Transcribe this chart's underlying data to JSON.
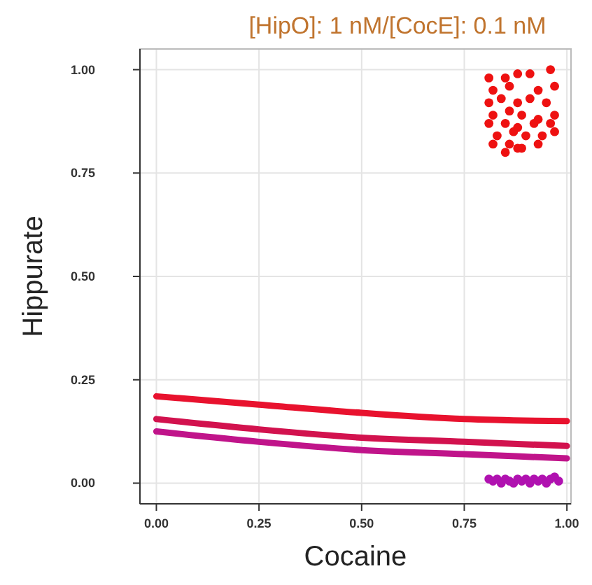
{
  "chart_data": {
    "type": "scatter",
    "title": "[HipO]: 1 nM/[CocE]: 0.1 nM",
    "xlabel": "Cocaine",
    "ylabel": "Hippurate",
    "xlim": [
      -0.04,
      1.01
    ],
    "ylim": [
      -0.05,
      1.05
    ],
    "xticks": [
      {
        "value": 0,
        "label": "0.00"
      },
      {
        "value": 0.25,
        "label": "0.25"
      },
      {
        "value": 0.5,
        "label": "0.50"
      },
      {
        "value": 0.75,
        "label": "0.75"
      },
      {
        "value": 1,
        "label": "1.00"
      }
    ],
    "yticks": [
      {
        "value": 0,
        "label": "0.00"
      },
      {
        "value": 0.25,
        "label": "0.25"
      },
      {
        "value": 0.5,
        "label": "0.50"
      },
      {
        "value": 0.75,
        "label": "0.75"
      },
      {
        "value": 1,
        "label": "1.00"
      }
    ],
    "grid": true,
    "marker": "circle",
    "series": [
      {
        "type": "line",
        "marker": "none",
        "color": "#e8122e",
        "x": [
          0,
          0.25,
          0.5,
          0.75,
          1
        ],
        "values": [
          0.21,
          0.19,
          0.17,
          0.155,
          0.15
        ]
      },
      {
        "type": "line",
        "marker": "none",
        "color": "#d2124e",
        "x": [
          0,
          0.25,
          0.5,
          0.75,
          1
        ],
        "values": [
          0.155,
          0.13,
          0.11,
          0.1,
          0.09
        ]
      },
      {
        "type": "line",
        "marker": "none",
        "color": "#c0148a",
        "x": [
          0,
          0.25,
          0.5,
          0.75,
          1
        ],
        "values": [
          0.125,
          0.1,
          0.08,
          0.07,
          0.06
        ]
      },
      {
        "color": "#ee1111",
        "x": [
          0.81,
          0.85,
          0.88,
          0.91,
          0.96,
          0.82,
          0.86,
          0.93,
          0.97,
          0.81,
          0.84,
          0.88,
          0.91,
          0.95,
          0.82,
          0.86,
          0.89,
          0.93,
          0.97,
          0.81,
          0.85,
          0.88,
          0.92,
          0.96,
          0.83,
          0.87,
          0.9,
          0.94,
          0.97,
          0.82,
          0.86,
          0.89,
          0.93,
          0.85,
          0.88
        ],
        "values": [
          0.98,
          0.98,
          0.99,
          0.99,
          1.0,
          0.95,
          0.96,
          0.95,
          0.96,
          0.92,
          0.93,
          0.92,
          0.93,
          0.92,
          0.89,
          0.9,
          0.89,
          0.88,
          0.89,
          0.87,
          0.87,
          0.86,
          0.87,
          0.87,
          0.84,
          0.85,
          0.84,
          0.84,
          0.85,
          0.82,
          0.82,
          0.81,
          0.82,
          0.8,
          0.81
        ]
      },
      {
        "color": "#b012b0",
        "x": [
          0.81,
          0.82,
          0.83,
          0.84,
          0.85,
          0.86,
          0.87,
          0.88,
          0.89,
          0.9,
          0.91,
          0.92,
          0.93,
          0.94,
          0.95,
          0.96,
          0.97,
          0.98
        ],
        "values": [
          0.01,
          0.005,
          0.01,
          0.0,
          0.01,
          0.005,
          0.0,
          0.01,
          0.005,
          0.01,
          0.0,
          0.01,
          0.005,
          0.01,
          0.0,
          0.01,
          0.015,
          0.005
        ]
      }
    ]
  }
}
